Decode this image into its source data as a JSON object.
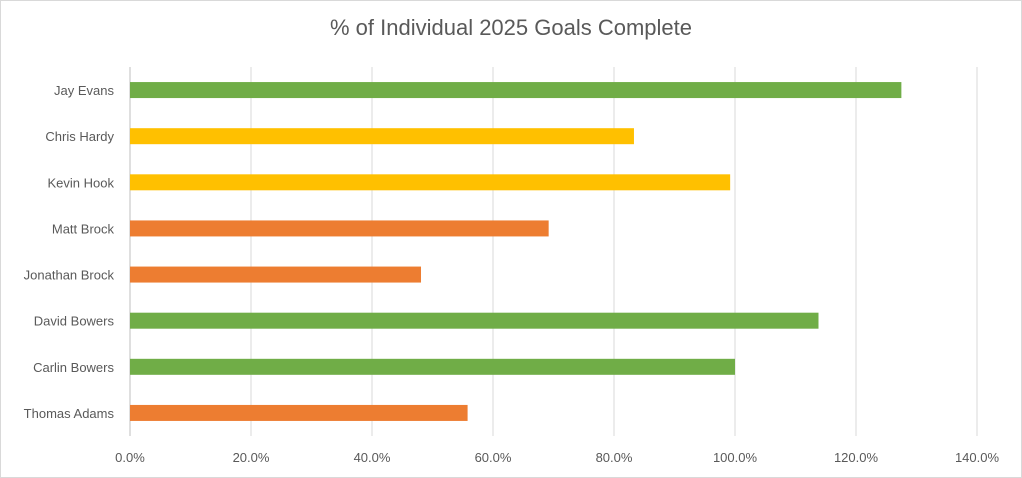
{
  "chart_data": {
    "type": "bar",
    "orientation": "horizontal",
    "title": "% of Individual 2025 Goals Complete",
    "xlabel": "",
    "ylabel": "",
    "categories": [
      "Jay Evans",
      "Chris Hardy",
      "Kevin Hook",
      "Matt Brock",
      "Jonathan Brock",
      "David Bowers",
      "Carlin Bowers",
      "Thomas Adams"
    ],
    "values": [
      127.5,
      83.3,
      99.2,
      69.2,
      48.1,
      113.8,
      100.0,
      55.8
    ],
    "bar_colors": [
      "#70ad47",
      "#ffc000",
      "#ffc000",
      "#ed7d31",
      "#ed7d31",
      "#70ad47",
      "#70ad47",
      "#ed7d31"
    ],
    "xlim": [
      0,
      140
    ],
    "x_ticks": [
      "0.0%",
      "20.0%",
      "40.0%",
      "60.0%",
      "80.0%",
      "100.0%",
      "120.0%",
      "140.0%"
    ],
    "grid": true,
    "legend": "none"
  }
}
